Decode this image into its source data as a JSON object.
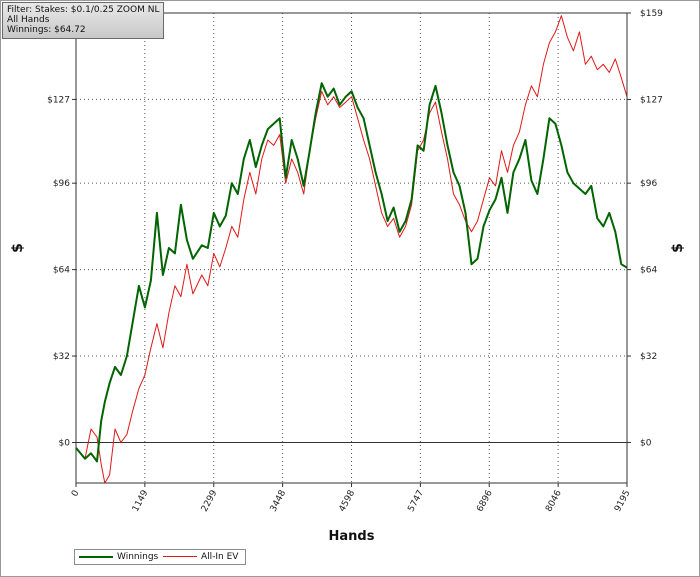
{
  "filter_panel": {
    "line1": "Filter: Stakes: $0.1/0.25 ZOOM NL",
    "line2": "All Hands",
    "line3": "Winnings: $64.72"
  },
  "chart_data": {
    "type": "line",
    "xlabel": "Hands",
    "ylabel": "$",
    "xlim": [
      0,
      9195
    ],
    "ylim": [
      -15,
      159
    ],
    "x_ticks": [
      "0",
      "1149",
      "2299",
      "3448",
      "4598",
      "5747",
      "6896",
      "8046",
      "9195"
    ],
    "y_ticks": [
      "$0",
      "$32",
      "$64",
      "$96",
      "$127",
      "$159"
    ],
    "grid": true,
    "legend_position": "bottom-left",
    "colors": {
      "Winnings": "#006400",
      "All-In EV": "#e01818"
    },
    "series": [
      {
        "name": "Winnings",
        "x": [
          0,
          150,
          250,
          350,
          420,
          480,
          560,
          650,
          750,
          850,
          950,
          1050,
          1150,
          1250,
          1350,
          1450,
          1550,
          1650,
          1750,
          1850,
          1950,
          2100,
          2200,
          2300,
          2400,
          2500,
          2600,
          2700,
          2800,
          2900,
          3000,
          3100,
          3200,
          3300,
          3400,
          3500,
          3600,
          3700,
          3800,
          3900,
          4000,
          4100,
          4200,
          4300,
          4400,
          4500,
          4600,
          4700,
          4800,
          4900,
          5000,
          5100,
          5200,
          5300,
          5400,
          5500,
          5600,
          5700,
          5800,
          5900,
          6000,
          6100,
          6200,
          6300,
          6400,
          6500,
          6600,
          6700,
          6800,
          6900,
          7000,
          7100,
          7200,
          7300,
          7400,
          7500,
          7600,
          7700,
          7800,
          7900,
          8000,
          8100,
          8200,
          8300,
          8400,
          8500,
          8600,
          8700,
          8800,
          8900,
          9000,
          9100,
          9195
        ],
        "values": [
          -2,
          -6,
          -4,
          -7,
          8,
          15,
          22,
          28,
          25,
          32,
          45,
          58,
          50,
          60,
          85,
          62,
          72,
          70,
          88,
          75,
          68,
          73,
          72,
          85,
          80,
          84,
          96,
          92,
          105,
          112,
          102,
          110,
          116,
          118,
          120,
          98,
          112,
          105,
          95,
          108,
          122,
          133,
          128,
          131,
          125,
          128,
          130,
          124,
          120,
          110,
          100,
          92,
          82,
          87,
          78,
          82,
          90,
          110,
          108,
          125,
          132,
          122,
          110,
          100,
          95,
          85,
          66,
          68,
          80,
          86,
          90,
          98,
          85,
          100,
          105,
          112,
          97,
          92,
          105,
          120,
          118,
          110,
          100,
          96,
          94,
          92,
          95,
          83,
          80,
          85,
          78,
          66,
          64.72
        ]
      },
      {
        "name": "All-In EV",
        "x": [
          0,
          150,
          250,
          350,
          420,
          480,
          560,
          650,
          750,
          850,
          950,
          1050,
          1150,
          1250,
          1350,
          1450,
          1550,
          1650,
          1750,
          1850,
          1950,
          2100,
          2200,
          2300,
          2400,
          2500,
          2600,
          2700,
          2800,
          2900,
          3000,
          3100,
          3200,
          3300,
          3400,
          3500,
          3600,
          3700,
          3800,
          3900,
          4000,
          4100,
          4200,
          4300,
          4400,
          4500,
          4600,
          4700,
          4800,
          4900,
          5000,
          5100,
          5200,
          5300,
          5400,
          5500,
          5600,
          5700,
          5800,
          5900,
          6000,
          6100,
          6200,
          6300,
          6400,
          6500,
          6600,
          6700,
          6800,
          6900,
          7000,
          7100,
          7200,
          7300,
          7400,
          7500,
          7600,
          7700,
          7800,
          7900,
          8000,
          8100,
          8200,
          8300,
          8400,
          8500,
          8600,
          8700,
          8800,
          8900,
          9000,
          9100,
          9195
        ],
        "values": [
          -2,
          -6,
          5,
          2,
          -8,
          -15,
          -12,
          5,
          0,
          3,
          12,
          20,
          25,
          35,
          44,
          35,
          48,
          58,
          54,
          66,
          55,
          62,
          58,
          70,
          65,
          72,
          80,
          76,
          90,
          100,
          92,
          105,
          112,
          110,
          114,
          96,
          105,
          100,
          92,
          108,
          120,
          130,
          125,
          128,
          124,
          126,
          128,
          120,
          112,
          105,
          95,
          85,
          80,
          83,
          76,
          80,
          88,
          108,
          112,
          122,
          126,
          115,
          105,
          92,
          88,
          82,
          78,
          82,
          90,
          98,
          95,
          108,
          100,
          110,
          115,
          125,
          132,
          128,
          140,
          148,
          152,
          158,
          150,
          145,
          152,
          140,
          143,
          138,
          140,
          137,
          142,
          135,
          128
        ]
      }
    ]
  }
}
